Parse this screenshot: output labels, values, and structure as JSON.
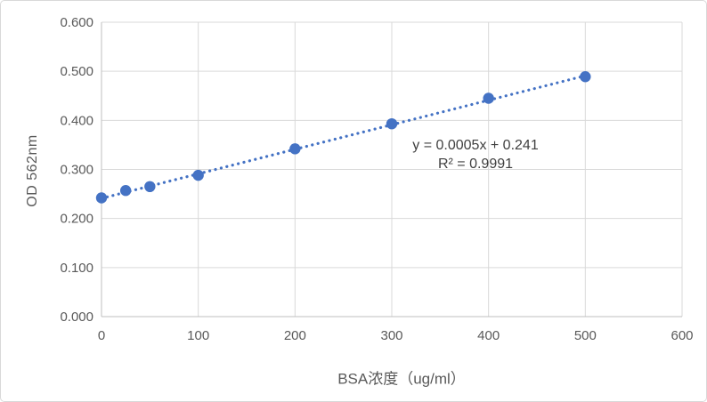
{
  "chart_data": {
    "type": "scatter",
    "title": "",
    "xlabel": "BSA浓度（ug/ml）",
    "ylabel": "OD 562nm",
    "x": [
      0,
      25,
      50,
      100,
      200,
      300,
      400,
      500
    ],
    "y": [
      0.242,
      0.257,
      0.265,
      0.288,
      0.342,
      0.393,
      0.445,
      0.489
    ],
    "xlim": [
      0,
      600
    ],
    "ylim": [
      0,
      0.6
    ],
    "xticks": [
      "0",
      "100",
      "200",
      "300",
      "400",
      "500",
      "600"
    ],
    "yticks": [
      "0.000",
      "0.100",
      "0.200",
      "0.300",
      "0.400",
      "0.500",
      "0.600"
    ],
    "grid": true,
    "legend": "none",
    "trendline": {
      "style": "dotted",
      "slope": 0.0005,
      "intercept": 0.241,
      "x_start": 0,
      "x_end": 500,
      "equation": "y = 0.0005x + 0.241",
      "r_squared": "R² = 0.9991"
    },
    "colors": {
      "marker": "#4472C4",
      "trendline": "#4472C4",
      "gridline": "#D9D9D9",
      "axis_line": "#BFBFBF",
      "tick_label": "#595959",
      "axis_title": "#595959",
      "annotation": "#404040"
    }
  }
}
